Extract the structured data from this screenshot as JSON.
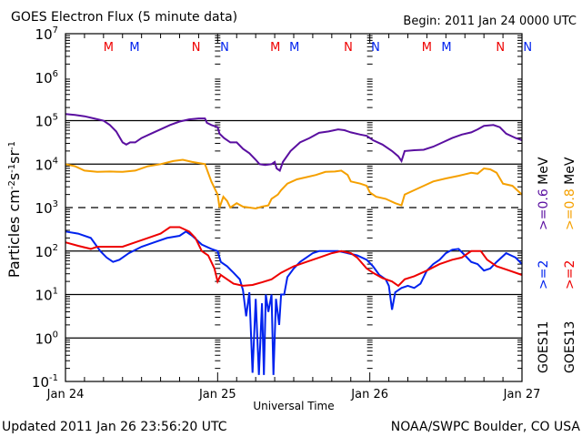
{
  "header": {
    "title": "GOES Electron Flux (5 minute data)",
    "begin": "Begin: 2011 Jan 24 0000 UTC"
  },
  "footer": {
    "updated": "Updated 2011 Jan 26 23:56:20 UTC",
    "credit": "NOAA/SWPC Boulder, CO USA"
  },
  "colors": {
    "goes11_06": "#5a0fa0",
    "goes13_08": "#f5a000",
    "goes11_2": "#0022ee",
    "goes13_2": "#ee0000",
    "axis": "#000000"
  },
  "chart_data": {
    "type": "line",
    "title": "GOES Electron Flux (5 minute data)",
    "xlabel": "Universal Time",
    "ylabel": "Particles cm^-2 s^-1 sr^-1",
    "yscale": "log",
    "ylim": [
      0.1,
      10000000
    ],
    "xlim_hours": [
      0,
      72
    ],
    "x_unit": "hours since 2011 Jan 24 0000 UTC",
    "x_ticks": [
      {
        "hour": 0,
        "label": "Jan 24"
      },
      {
        "hour": 24,
        "label": "Jan 25"
      },
      {
        "hour": 48,
        "label": "Jan 26"
      },
      {
        "hour": 72,
        "label": "Jan 27"
      }
    ],
    "y_ticks": [
      {
        "exp": 7,
        "label_base": "10",
        "label_exp": "7"
      },
      {
        "exp": 6,
        "label_base": "10",
        "label_exp": "6"
      },
      {
        "exp": 5,
        "label_base": "10",
        "label_exp": "5"
      },
      {
        "exp": 4,
        "label_base": "10",
        "label_exp": "4"
      },
      {
        "exp": 3,
        "label_base": "10",
        "label_exp": "3"
      },
      {
        "exp": 2,
        "label_base": "10",
        "label_exp": "2"
      },
      {
        "exp": 1,
        "label_base": "10",
        "label_exp": "1"
      },
      {
        "exp": 0,
        "label_base": "10",
        "label_exp": "0"
      },
      {
        "exp": -1,
        "label_base": "10",
        "label_exp": "-1"
      }
    ],
    "grid": {
      "solid_decades": [
        5,
        4,
        2,
        1,
        0
      ],
      "dashed_decades": [
        3
      ]
    },
    "midnight_markers": {
      "M_hours": [
        12.2,
        15.4,
        36.2,
        39.4,
        60.2,
        63.4
      ],
      "N_hours": [
        21.0,
        25.4,
        44.9,
        49.4,
        69.0,
        73.4
      ]
    },
    "top_markers": [
      {
        "label": "M",
        "hour": 6.8,
        "color": "#ee0000"
      },
      {
        "label": "M",
        "hour": 10.9,
        "color": "#0022ee"
      },
      {
        "label": "N",
        "hour": 20.6,
        "color": "#ee0000"
      },
      {
        "label": "N",
        "hour": 25.1,
        "color": "#0022ee"
      },
      {
        "label": "M",
        "hour": 33.1,
        "color": "#ee0000"
      },
      {
        "label": "M",
        "hour": 36.1,
        "color": "#0022ee"
      },
      {
        "label": "N",
        "hour": 44.6,
        "color": "#ee0000"
      },
      {
        "label": "N",
        "hour": 48.9,
        "color": "#0022ee"
      },
      {
        "label": "M",
        "hour": 57.0,
        "color": "#ee0000"
      },
      {
        "label": "M",
        "hour": 60.1,
        "color": "#0022ee"
      },
      {
        "label": "N",
        "hour": 68.6,
        "color": "#ee0000"
      },
      {
        "label": "N",
        "hour": 72.9,
        "color": "#0022ee"
      }
    ],
    "legend": [
      {
        "satellite": "GOES11",
        "energy": ">=0.6 MeV",
        "color": "#5a0fa0"
      },
      {
        "satellite": "GOES13",
        "energy": ">=0.8 MeV",
        "color": "#f5a000"
      },
      {
        "satellite": "GOES11",
        "energy": ">=2",
        "color": "#0022ee"
      },
      {
        "satellite": "GOES13",
        "energy": ">=2",
        "color": "#ee0000"
      }
    ],
    "legend_labels": {
      "energy_06": ">=0.6  MeV",
      "energy_08": ">=0.8  MeV",
      "g11_2": ">=2",
      "g13_2": ">=2",
      "sat11": "GOES11",
      "sat13": "GOES13"
    },
    "series": [
      {
        "name": "GOES11 >=0.6 MeV",
        "color": "#5a0fa0",
        "points_log10": [
          [
            0,
            5.15
          ],
          [
            1.5,
            5.13
          ],
          [
            3,
            5.1
          ],
          [
            4.5,
            5.05
          ],
          [
            6,
            5.0
          ],
          [
            7,
            4.9
          ],
          [
            8,
            4.75
          ],
          [
            9,
            4.5
          ],
          [
            9.6,
            4.45
          ],
          [
            10.2,
            4.5
          ],
          [
            11,
            4.5
          ],
          [
            12,
            4.6
          ],
          [
            13.5,
            4.7
          ],
          [
            15,
            4.8
          ],
          [
            16.5,
            4.9
          ],
          [
            18,
            4.98
          ],
          [
            19.5,
            5.03
          ],
          [
            21,
            5.05
          ],
          [
            22,
            5.05
          ],
          [
            22.3,
            4.95
          ],
          [
            23,
            4.9
          ],
          [
            24,
            4.85
          ],
          [
            24.3,
            4.7
          ],
          [
            25,
            4.6
          ],
          [
            26,
            4.5
          ],
          [
            27,
            4.5
          ],
          [
            28,
            4.35
          ],
          [
            29,
            4.25
          ],
          [
            30,
            4.1
          ],
          [
            30.6,
            4.0
          ],
          [
            31.5,
            3.98
          ],
          [
            32.5,
            4.0
          ],
          [
            33,
            4.05
          ],
          [
            33.3,
            3.9
          ],
          [
            33.8,
            3.85
          ],
          [
            34.3,
            4.05
          ],
          [
            35.5,
            4.3
          ],
          [
            37,
            4.5
          ],
          [
            38.5,
            4.6
          ],
          [
            40,
            4.72
          ],
          [
            41.5,
            4.75
          ],
          [
            43,
            4.8
          ],
          [
            44,
            4.78
          ],
          [
            45,
            4.73
          ],
          [
            46.5,
            4.68
          ],
          [
            47.5,
            4.65
          ],
          [
            48.5,
            4.55
          ],
          [
            50,
            4.45
          ],
          [
            51.5,
            4.3
          ],
          [
            52.5,
            4.18
          ],
          [
            53,
            4.07
          ],
          [
            53.5,
            4.3
          ],
          [
            55,
            4.32
          ],
          [
            56.5,
            4.33
          ],
          [
            58,
            4.4
          ],
          [
            59.5,
            4.5
          ],
          [
            61,
            4.6
          ],
          [
            62.5,
            4.68
          ],
          [
            64,
            4.73
          ],
          [
            65,
            4.8
          ],
          [
            66,
            4.88
          ],
          [
            67.5,
            4.9
          ],
          [
            68.5,
            4.85
          ],
          [
            69.5,
            4.7
          ],
          [
            71,
            4.6
          ],
          [
            72,
            4.55
          ]
        ]
      },
      {
        "name": "GOES13 >=0.8 MeV",
        "color": "#f5a000",
        "points_log10": [
          [
            0,
            4.0
          ],
          [
            1.5,
            3.95
          ],
          [
            3,
            3.85
          ],
          [
            5,
            3.82
          ],
          [
            7,
            3.83
          ],
          [
            9,
            3.82
          ],
          [
            11,
            3.85
          ],
          [
            13,
            3.95
          ],
          [
            15,
            4.0
          ],
          [
            17,
            4.07
          ],
          [
            18.5,
            4.1
          ],
          [
            20,
            4.05
          ],
          [
            22,
            4.0
          ],
          [
            23,
            3.6
          ],
          [
            24,
            3.3
          ],
          [
            24.3,
            3.0
          ],
          [
            24.9,
            3.25
          ],
          [
            25.5,
            3.15
          ],
          [
            26,
            3.0
          ],
          [
            27,
            3.1
          ],
          [
            28,
            3.02
          ],
          [
            29,
            3.0
          ],
          [
            30,
            2.98
          ],
          [
            31,
            3.02
          ],
          [
            32,
            3.05
          ],
          [
            32.5,
            3.2
          ],
          [
            33.5,
            3.3
          ],
          [
            34,
            3.4
          ],
          [
            35,
            3.55
          ],
          [
            36.5,
            3.65
          ],
          [
            38,
            3.7
          ],
          [
            39.5,
            3.75
          ],
          [
            41,
            3.82
          ],
          [
            42.5,
            3.83
          ],
          [
            43.5,
            3.85
          ],
          [
            44.5,
            3.75
          ],
          [
            45,
            3.6
          ],
          [
            46.5,
            3.55
          ],
          [
            47.5,
            3.5
          ],
          [
            48,
            3.35
          ],
          [
            49,
            3.25
          ],
          [
            50.5,
            3.2
          ],
          [
            52,
            3.1
          ],
          [
            53,
            3.05
          ],
          [
            53.5,
            3.3
          ],
          [
            55,
            3.4
          ],
          [
            56.5,
            3.5
          ],
          [
            58,
            3.6
          ],
          [
            60,
            3.67
          ],
          [
            62,
            3.73
          ],
          [
            64,
            3.8
          ],
          [
            65,
            3.78
          ],
          [
            66,
            3.9
          ],
          [
            67,
            3.88
          ],
          [
            68,
            3.8
          ],
          [
            69,
            3.55
          ],
          [
            70.5,
            3.5
          ],
          [
            72,
            3.3
          ]
        ]
      },
      {
        "name": "GOES11 >=2",
        "color": "#0022ee",
        "points_log10": [
          [
            0,
            2.45
          ],
          [
            2,
            2.4
          ],
          [
            4,
            2.3
          ],
          [
            5.5,
            2.0
          ],
          [
            6.5,
            1.85
          ],
          [
            7.5,
            1.75
          ],
          [
            8.5,
            1.8
          ],
          [
            10,
            1.95
          ],
          [
            12,
            2.1
          ],
          [
            14,
            2.2
          ],
          [
            16,
            2.3
          ],
          [
            18,
            2.35
          ],
          [
            19,
            2.45
          ],
          [
            20,
            2.35
          ],
          [
            21.5,
            2.15
          ],
          [
            23,
            2.05
          ],
          [
            24,
            2.0
          ],
          [
            24.5,
            1.75
          ],
          [
            25.5,
            1.65
          ],
          [
            26.5,
            1.5
          ],
          [
            27.5,
            1.35
          ],
          [
            28,
            1.1
          ],
          [
            28.5,
            0.5
          ],
          [
            29,
            1.05
          ],
          [
            29.5,
            -0.8
          ],
          [
            30,
            0.9
          ],
          [
            30.5,
            -0.85
          ],
          [
            31,
            0.8
          ],
          [
            31.3,
            -0.85
          ],
          [
            31.6,
            1.0
          ],
          [
            32,
            0.6
          ],
          [
            32.5,
            1.0
          ],
          [
            32.8,
            -0.85
          ],
          [
            33.2,
            0.9
          ],
          [
            33.7,
            0.3
          ],
          [
            34,
            1.0
          ],
          [
            34.5,
            1.0
          ],
          [
            35,
            1.4
          ],
          [
            36,
            1.6
          ],
          [
            37,
            1.75
          ],
          [
            38,
            1.85
          ],
          [
            39,
            1.95
          ],
          [
            40,
            2.0
          ],
          [
            41.5,
            2.0
          ],
          [
            43,
            2.0
          ],
          [
            44.5,
            1.95
          ],
          [
            46,
            1.9
          ],
          [
            47.5,
            1.8
          ],
          [
            48.5,
            1.65
          ],
          [
            49.5,
            1.45
          ],
          [
            50.5,
            1.35
          ],
          [
            51,
            1.2
          ],
          [
            51.5,
            0.65
          ],
          [
            52,
            1.05
          ],
          [
            53,
            1.15
          ],
          [
            54,
            1.2
          ],
          [
            55,
            1.15
          ],
          [
            56,
            1.25
          ],
          [
            57,
            1.55
          ],
          [
            58,
            1.7
          ],
          [
            59,
            1.8
          ],
          [
            60,
            1.95
          ],
          [
            61,
            2.03
          ],
          [
            62,
            2.05
          ],
          [
            63,
            1.9
          ],
          [
            64,
            1.75
          ],
          [
            65,
            1.7
          ],
          [
            66,
            1.55
          ],
          [
            67,
            1.6
          ],
          [
            68,
            1.75
          ],
          [
            69.5,
            1.95
          ],
          [
            71,
            1.85
          ],
          [
            72,
            1.7
          ]
        ]
      },
      {
        "name": "GOES13 >=2",
        "color": "#ee0000",
        "points_log10": [
          [
            0,
            2.2
          ],
          [
            2,
            2.12
          ],
          [
            4,
            2.05
          ],
          [
            5,
            2.1
          ],
          [
            7,
            2.1
          ],
          [
            9,
            2.1
          ],
          [
            11,
            2.2
          ],
          [
            13,
            2.3
          ],
          [
            15,
            2.4
          ],
          [
            16.5,
            2.55
          ],
          [
            18,
            2.55
          ],
          [
            19.5,
            2.45
          ],
          [
            20.5,
            2.3
          ],
          [
            21.5,
            2.0
          ],
          [
            22.5,
            1.9
          ],
          [
            23.5,
            1.6
          ],
          [
            24,
            1.3
          ],
          [
            24.5,
            1.45
          ],
          [
            25.5,
            1.35
          ],
          [
            26.5,
            1.25
          ],
          [
            28,
            1.2
          ],
          [
            29.5,
            1.22
          ],
          [
            31,
            1.28
          ],
          [
            32.5,
            1.35
          ],
          [
            34,
            1.5
          ],
          [
            36,
            1.65
          ],
          [
            38,
            1.75
          ],
          [
            40,
            1.85
          ],
          [
            42,
            1.95
          ],
          [
            43.5,
            2.0
          ],
          [
            45,
            1.95
          ],
          [
            46,
            1.85
          ],
          [
            47.5,
            1.6
          ],
          [
            48.5,
            1.5
          ],
          [
            50,
            1.38
          ],
          [
            51.5,
            1.3
          ],
          [
            52.5,
            1.2
          ],
          [
            53.5,
            1.35
          ],
          [
            55,
            1.42
          ],
          [
            57,
            1.55
          ],
          [
            59,
            1.7
          ],
          [
            61,
            1.8
          ],
          [
            62.5,
            1.85
          ],
          [
            64,
            2.0
          ],
          [
            65.5,
            2.0
          ],
          [
            66.5,
            1.8
          ],
          [
            68,
            1.65
          ],
          [
            70,
            1.55
          ],
          [
            72,
            1.45
          ]
        ]
      }
    ]
  }
}
